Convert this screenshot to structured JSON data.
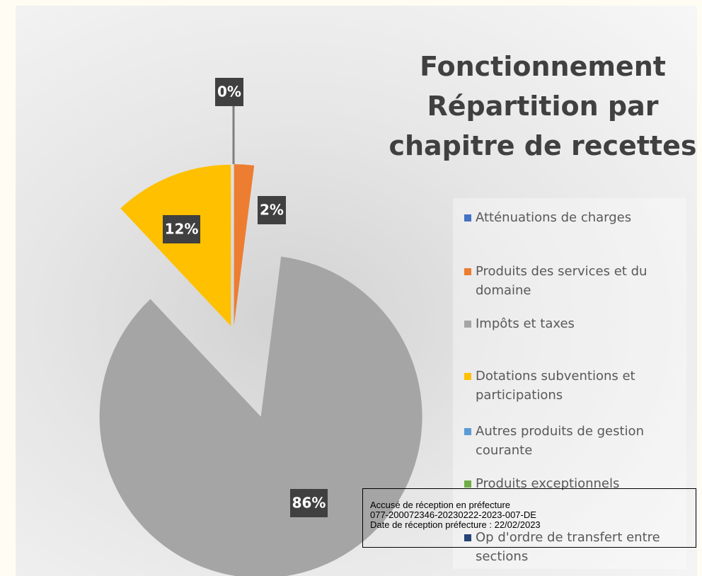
{
  "chart_data": {
    "type": "pie",
    "title": [
      "Fonctionnement",
      "Répartition par",
      "chapitre de recettes"
    ],
    "categories": [
      "Atténuations de charges",
      "Produits des services et du domaine",
      "Impôts et taxes",
      "Dotations subventions et participations",
      "Autres produits de gestion courante",
      "Produits exceptionnels",
      "Op d'ordre de transfert entre sections"
    ],
    "values": [
      0,
      2,
      86,
      12,
      0,
      0,
      0
    ],
    "value_labels": [
      "0%",
      "2%",
      "86%",
      "12%",
      null,
      null,
      null
    ],
    "colors": [
      "#4472c4",
      "#ed7d31",
      "#a5a5a5",
      "#ffc000",
      "#5b9bd5",
      "#70ad47",
      "#264478"
    ],
    "legend": "right"
  },
  "stamp": {
    "lines": [
      "Accusé de réception en préfecture",
      "077-200072346-20230222-2023-007-DE",
      "Date de réception préfecture : 22/02/2023"
    ]
  }
}
